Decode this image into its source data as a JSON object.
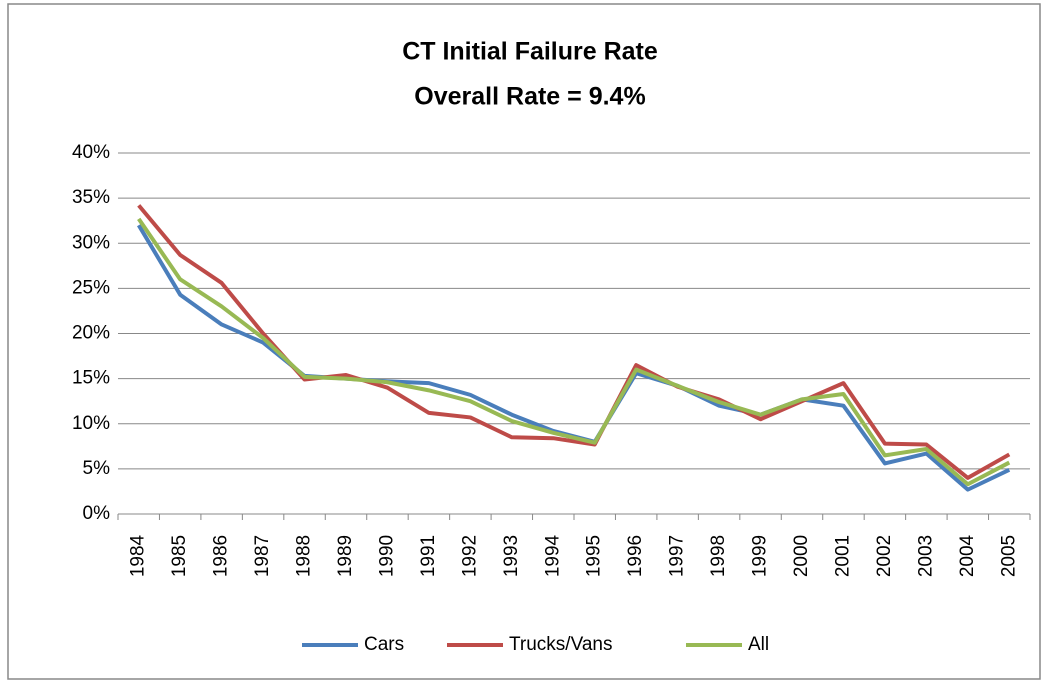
{
  "chart_data": {
    "type": "line",
    "title": "CT Initial Failure Rate",
    "subtitle": "Overall Rate = 9.4%",
    "categories": [
      "1984",
      "1985",
      "1986",
      "1987",
      "1988",
      "1989",
      "1990",
      "1991",
      "1992",
      "1993",
      "1994",
      "1995",
      "1996",
      "1997",
      "1998",
      "1999",
      "2000",
      "2001",
      "2002",
      "2003",
      "2004",
      "2005"
    ],
    "series": [
      {
        "name": "Cars",
        "color": "#4a7ebb",
        "values": [
          32,
          24.3,
          21,
          19,
          15.3,
          15,
          14.7,
          14.5,
          13.2,
          11,
          9.2,
          8,
          15.6,
          14.2,
          12,
          11,
          12.7,
          12,
          5.6,
          6.7,
          2.7,
          4.9
        ]
      },
      {
        "name": "Trucks/Vans",
        "color": "#be4b48",
        "values": [
          34.2,
          28.7,
          25.6,
          20,
          14.9,
          15.4,
          14,
          11.2,
          10.7,
          8.5,
          8.4,
          7.7,
          16.5,
          14.1,
          12.7,
          10.5,
          12.5,
          14.5,
          7.8,
          7.7,
          4,
          6.6
        ]
      },
      {
        "name": "All",
        "color": "#98b954",
        "values": [
          32.7,
          26,
          23,
          19.5,
          15.2,
          15,
          14.6,
          13.7,
          12.5,
          10.3,
          9,
          7.9,
          16,
          14.2,
          12.4,
          11,
          12.7,
          13.3,
          6.5,
          7.2,
          3.3,
          5.7
        ]
      }
    ],
    "ylim": [
      0,
      40
    ],
    "yticks": [
      {
        "value": 0,
        "label": "0%"
      },
      {
        "value": 5,
        "label": "5%"
      },
      {
        "value": 10,
        "label": "10%"
      },
      {
        "value": 15,
        "label": "15%"
      },
      {
        "value": 20,
        "label": "20%"
      },
      {
        "value": 25,
        "label": "25%"
      },
      {
        "value": 30,
        "label": "30%"
      },
      {
        "value": 35,
        "label": "35%"
      },
      {
        "value": 40,
        "label": "40%"
      }
    ],
    "grid": true,
    "legend": "bottom"
  }
}
